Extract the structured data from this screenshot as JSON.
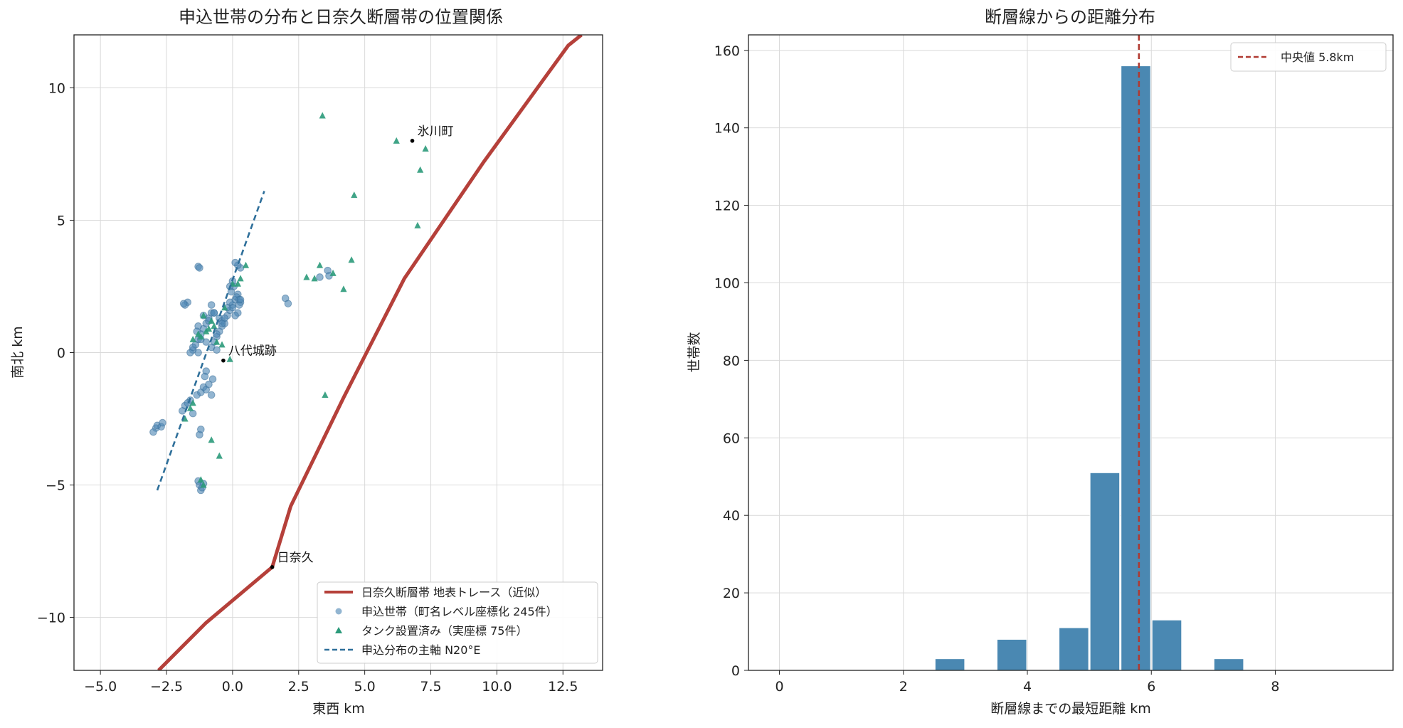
{
  "chart_data": [
    {
      "type": "scatter",
      "title": "申込世帯の分布と日奈久断層帯の位置関係",
      "xlabel": "東西 km",
      "ylabel": "南北 km",
      "xlim": [
        -6.0,
        14.0
      ],
      "ylim": [
        -12.0,
        12.0
      ],
      "xticks": [
        -5.0,
        -2.5,
        0.0,
        2.5,
        5.0,
        7.5,
        10.0,
        12.5
      ],
      "xtick_labels": [
        "−5.0",
        "−2.5",
        "0.0",
        "2.5",
        "5.0",
        "7.5",
        "10.0",
        "12.5"
      ],
      "yticks": [
        -10,
        -5,
        0,
        5,
        10
      ],
      "ytick_labels": [
        "−10",
        "−5",
        "0",
        "5",
        "10"
      ],
      "grid": true,
      "legend_position": "lower-right",
      "colors": {
        "fault": "#b5403a",
        "household": "#4f87b5",
        "tank": "#2b9a7a",
        "axis_line": "#2e6f9a",
        "marker": "#000000"
      },
      "series": [
        {
          "name": "日奈久断層帯 地表トレース（近似）",
          "kind": "line",
          "x": [
            -2.8,
            -1.0,
            1.5,
            2.2,
            4.2,
            6.5,
            9.5,
            12.7,
            13.2
          ],
          "y": [
            -12.0,
            -10.2,
            -8.1,
            -5.8,
            -1.7,
            2.8,
            7.2,
            11.6,
            12.0
          ]
        },
        {
          "name": "申込世帯（町名レベル座標化 245件）",
          "kind": "points",
          "x": [
            -1.3,
            -1.25,
            -2.9,
            -2.85,
            -2.7,
            -2.65,
            -3.0,
            -1.2,
            -1.15,
            -1.1,
            -1.25,
            -1.2,
            -1.9,
            -1.8,
            -1.6,
            -1.5,
            -1.7,
            -1.35,
            -1.2,
            -1.1,
            -1.0,
            -0.9,
            -0.8,
            -0.75,
            -1.0,
            -1.05,
            -1.5,
            -1.4,
            -1.3,
            -1.2,
            -1.1,
            -1.0,
            -0.9,
            -0.8,
            -0.7,
            -0.6,
            -0.5,
            -0.4,
            -1.6,
            -1.5,
            -1.3,
            -1.0,
            -0.8,
            -0.6,
            -0.9,
            -1.1,
            -1.3,
            -0.7,
            -0.5,
            -0.4,
            -0.3,
            -0.2,
            -0.1,
            0.0,
            0.1,
            0.2,
            0.3,
            0.2,
            0.1,
            0.0,
            -0.1,
            0.15,
            0.25,
            -0.05,
            0.05,
            0.3,
            0.2,
            0.1,
            0.0,
            -0.1,
            -0.2,
            -0.3,
            -0.4,
            -0.6,
            -0.7,
            -0.8,
            -1.2,
            -1.35,
            -1.7,
            -1.8,
            -1.85,
            -1.3,
            -1.25,
            0.25,
            0.3,
            2.0,
            2.1,
            3.3,
            3.6,
            3.65
          ],
          "y": [
            -4.85,
            -5.0,
            -2.85,
            -2.75,
            -2.8,
            -2.65,
            -3.0,
            -5.2,
            -5.1,
            -4.95,
            -3.1,
            -2.9,
            -2.2,
            -2.0,
            -1.8,
            -2.3,
            -1.9,
            -1.6,
            -1.5,
            -1.3,
            -1.4,
            -1.2,
            -1.6,
            -1.0,
            -0.7,
            -0.9,
            0.1,
            0.3,
            0.5,
            0.7,
            0.9,
            1.1,
            1.3,
            1.5,
            0.4,
            0.6,
            0.8,
            1.0,
            0.0,
            0.2,
            0.0,
            0.4,
            0.2,
            0.1,
            1.2,
            1.4,
            1.0,
            1.5,
            1.3,
            1.2,
            1.1,
            1.4,
            1.6,
            1.8,
            2.0,
            2.2,
            1.9,
            1.5,
            1.4,
            1.7,
            1.9,
            2.1,
            2.0,
            2.3,
            2.5,
            3.2,
            3.3,
            3.4,
            2.7,
            2.5,
            1.7,
            1.3,
            1.1,
            0.7,
            1.5,
            1.8,
            0.5,
            0.8,
            1.9,
            1.8,
            1.85,
            3.25,
            3.2,
            1.8,
            2.0,
            2.05,
            1.85,
            2.85,
            3.1,
            2.9
          ]
        },
        {
          "name": "タンク設置済み（実座標 75件）",
          "kind": "points",
          "x": [
            3.4,
            6.2,
            7.3,
            7.1,
            4.6,
            7.0,
            4.5,
            3.3,
            3.1,
            2.8,
            3.8,
            4.2,
            3.5,
            -0.5,
            -0.1,
            0.5,
            0.0,
            -0.3,
            -0.7,
            -1.0,
            -1.2,
            -0.9,
            -0.8,
            -1.1,
            -1.3,
            -1.5,
            -0.6,
            -0.4,
            0.2,
            0.3,
            -1.6,
            -1.8,
            -1.5,
            -1.1,
            -1.2,
            -0.8
          ],
          "y": [
            8.95,
            8.0,
            7.7,
            6.9,
            5.95,
            4.8,
            3.5,
            3.3,
            2.8,
            2.85,
            3.0,
            2.4,
            -1.6,
            -3.9,
            -0.25,
            3.3,
            2.6,
            1.7,
            1.0,
            0.8,
            0.6,
            0.9,
            1.2,
            1.4,
            0.7,
            0.5,
            0.4,
            0.3,
            2.6,
            2.8,
            -2.1,
            -2.5,
            -1.9,
            -5.0,
            -4.8,
            -3.3
          ]
        },
        {
          "name": "申込分布の主軸 N20°E",
          "kind": "dashed-line",
          "x": [
            -2.85,
            1.2
          ],
          "y": [
            -5.2,
            6.1
          ]
        }
      ],
      "annotations": [
        {
          "label": "氷川町",
          "x": 6.8,
          "y": 8.0
        },
        {
          "label": "八代城跡",
          "x": -0.35,
          "y": -0.3
        },
        {
          "label": "日奈久",
          "x": 1.5,
          "y": -8.1
        }
      ]
    },
    {
      "type": "bar",
      "title": "断層線からの距離分布",
      "xlabel": "断層線までの最短距離 km",
      "ylabel": "世帯数",
      "xlim": [
        -0.5,
        9.9
      ],
      "ylim": [
        0,
        164
      ],
      "xticks": [
        0,
        2,
        4,
        6,
        8
      ],
      "xtick_labels": [
        "0",
        "2",
        "4",
        "6",
        "8"
      ],
      "yticks": [
        0,
        20,
        40,
        60,
        80,
        100,
        120,
        140,
        160
      ],
      "ytick_labels": [
        "0",
        "20",
        "40",
        "60",
        "80",
        "100",
        "120",
        "140",
        "160"
      ],
      "grid": true,
      "legend_position": "top-right",
      "bin_width": 0.5,
      "bins": [
        {
          "start": 2.5,
          "value": 3
        },
        {
          "start": 3.5,
          "value": 8
        },
        {
          "start": 4.5,
          "value": 11
        },
        {
          "start": 5.0,
          "value": 51
        },
        {
          "start": 5.5,
          "value": 156
        },
        {
          "start": 6.0,
          "value": 13
        },
        {
          "start": 7.0,
          "value": 3
        }
      ],
      "median": {
        "value": 5.8,
        "label": "中央値 5.8km"
      },
      "colors": {
        "bar": "#4a88b2",
        "median": "#b03a32"
      }
    }
  ]
}
